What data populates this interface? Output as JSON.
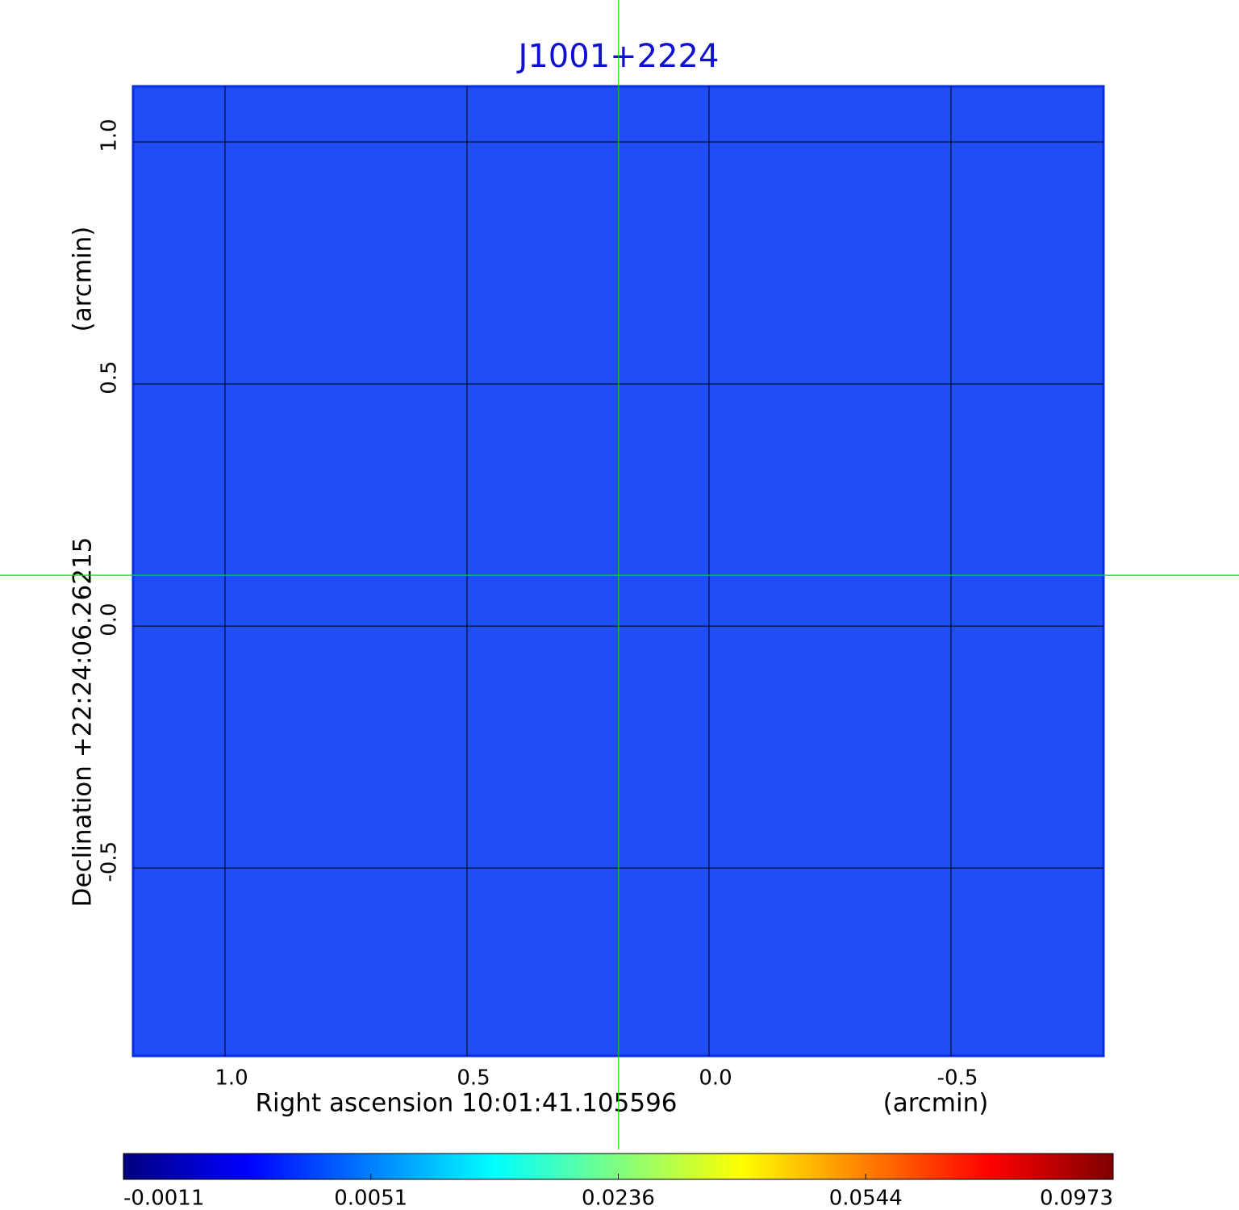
{
  "chart_data": {
    "type": "image",
    "title": "J1001+2224",
    "x_label": "Right ascension  10:01:41.105596",
    "x_unit": "(arcmin)",
    "y_label": "Declination  +22:24:06.26215",
    "y_unit": "(arcmin)",
    "xlim": [
      1.19,
      -0.815
    ],
    "ylim": [
      -0.888,
      1.115
    ],
    "xticks": [
      {
        "value": 1,
        "label": "1.0"
      },
      0.5,
      {
        "value": 0,
        "label": "0.0"
      },
      -0.5
    ],
    "yticks": [
      {
        "value": 1,
        "label": "1.0"
      },
      0.5,
      {
        "value": 0,
        "label": "0.0"
      },
      -0.5
    ],
    "grid": true,
    "crosshair": {
      "x": 0.187,
      "y": 0.105,
      "color": "#00e000"
    },
    "colormap": "jet",
    "colorbar_ticks": [
      -0.0011,
      0.0051,
      0.0236,
      0.0544,
      0.0973
    ]
  }
}
